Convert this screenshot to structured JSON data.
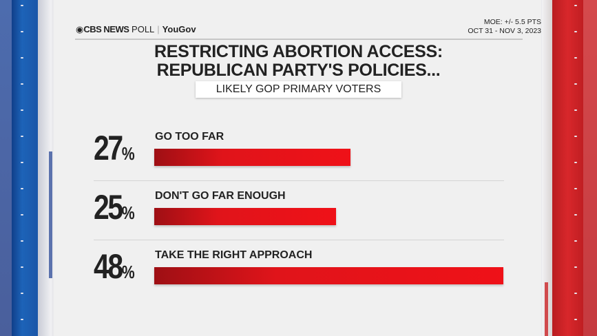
{
  "header": {
    "brand_cbs": "CBS NEWS",
    "brand_poll": "POLL",
    "brand_partner": "YouGov",
    "moe": "MOE: +/- 5.5 PTS",
    "dates": "OCT 31 - NOV 3, 2023"
  },
  "colors": {
    "bar": "#e0141a",
    "left_strip": "#1d63b8",
    "right_strip": "#d8272b"
  },
  "chart_data": {
    "type": "bar",
    "orientation": "horizontal",
    "title": "RESTRICTING ABORTION ACCESS: REPUBLICAN PARTY'S POLICIES...",
    "title_line1": "RESTRICTING ABORTION ACCESS:",
    "title_line2": "REPUBLICAN PARTY'S POLICIES...",
    "subtitle": "LIKELY GOP PRIMARY VOTERS",
    "categories": [
      "GO TOO FAR",
      "DON'T GO FAR ENOUGH",
      "TAKE THE RIGHT APPROACH"
    ],
    "values": [
      27,
      25,
      48
    ],
    "value_suffix": "%",
    "xlim": [
      0,
      48
    ]
  }
}
